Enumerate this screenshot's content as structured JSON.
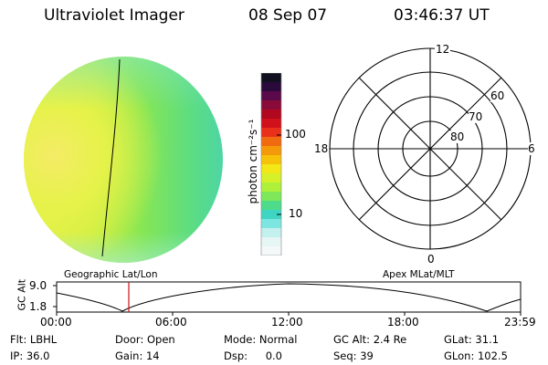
{
  "header": {
    "instrument": "Ultraviolet Imager",
    "date": "08 Sep 07",
    "time": "03:46:37 UT"
  },
  "colorbar": {
    "unit_label": "photon cm⁻²s⁻¹",
    "ticks": [
      "100",
      "10"
    ],
    "colors": [
      "#101020",
      "#2a0a3a",
      "#5a0a4a",
      "#8a0a3a",
      "#b0081e",
      "#d0101a",
      "#e8301a",
      "#f06a10",
      "#f49a0a",
      "#f6c20a",
      "#f2e818",
      "#d6f02a",
      "#aef03a",
      "#7ee85a",
      "#4edc8a",
      "#3ed6c2",
      "#7ee6e0",
      "#c4f0ee",
      "#e6f6f4",
      "#f4f8f8"
    ]
  },
  "polar_grid": {
    "mlt_labels": [
      "12",
      "18",
      "6",
      "0"
    ],
    "lat_labels": [
      "60",
      "70",
      "80"
    ]
  },
  "altitude_plot": {
    "ylabel": "GC Alt",
    "yticks": [
      "9.0",
      "1.8"
    ],
    "left_caption": "Geographic Lat/Lon",
    "right_caption": "Apex MLat/MLT",
    "xticks": [
      "00:00",
      "06:00",
      "12:00",
      "18:00",
      "23:59"
    ]
  },
  "info_row1": [
    {
      "label": "Flt:",
      "value": "LBHL"
    },
    {
      "label": "Door:",
      "value": "Open"
    },
    {
      "label": "Mode:",
      "value": "Normal"
    },
    {
      "label": "GC Alt:",
      "value": "2.4 Re"
    },
    {
      "label": "GLat:",
      "value": "31.1"
    }
  ],
  "info_row2": [
    {
      "label": "IP:",
      "value": "36.0"
    },
    {
      "label": "Gain:",
      "value": "14"
    },
    {
      "label": "Dsp:",
      "value": "0.0"
    },
    {
      "label": "Seq:",
      "value": "39"
    },
    {
      "label": "GLon:",
      "value": "102.5"
    }
  ]
}
